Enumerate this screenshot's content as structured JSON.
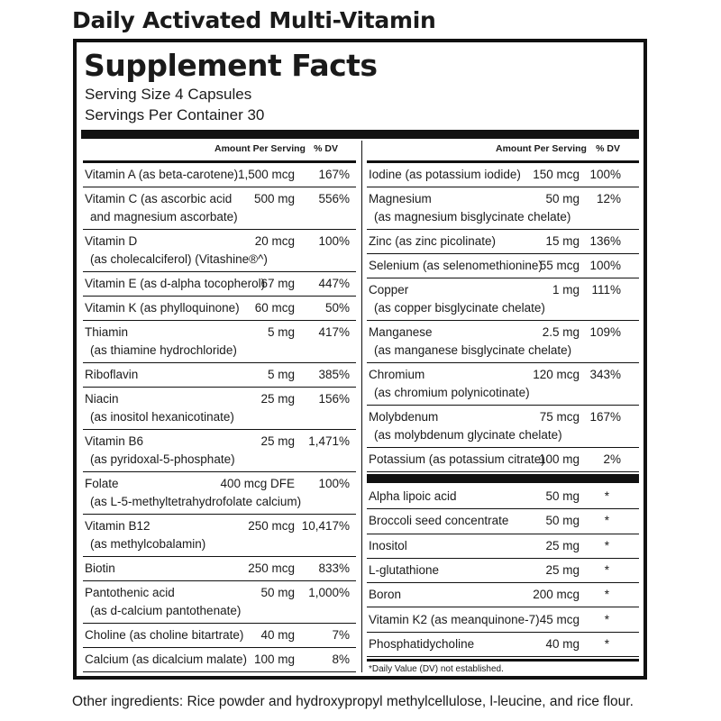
{
  "product_title": "Daily Activated Multi-Vitamin",
  "facts_title": "Supplement Facts",
  "serving_size": "Serving Size 4 Capsules",
  "servings_per_container": "Servings Per Container 30",
  "header": {
    "amount": "Amount Per Serving",
    "dv": "% DV"
  },
  "left_rows": [
    {
      "l1": "Vitamin A (as beta-carotene)",
      "l2": "",
      "amount": "1,500 mcg",
      "dv": "167%"
    },
    {
      "l1": "Vitamin C (as ascorbic acid",
      "l2": "and magnesium ascorbate)",
      "amount": "500 mg",
      "dv": "556%"
    },
    {
      "l1": "Vitamin D",
      "l2": "(as cholecalciferol) (Vitashine®^)",
      "amount": "20 mcg",
      "dv": "100%"
    },
    {
      "l1": "Vitamin E (as d-alpha tocopherol)",
      "l2": "",
      "amount": "67 mg",
      "dv": "447%"
    },
    {
      "l1": "Vitamin K (as phylloquinone)",
      "l2": "",
      "amount": "60 mcg",
      "dv": "50%"
    },
    {
      "l1": "Thiamin",
      "l2": "(as thiamine hydrochloride)",
      "amount": "5 mg",
      "dv": "417%"
    },
    {
      "l1": "Riboflavin",
      "l2": "",
      "amount": "5 mg",
      "dv": "385%"
    },
    {
      "l1": "Niacin",
      "l2": "(as inositol hexanicotinate)",
      "amount": "25 mg",
      "dv": "156%"
    },
    {
      "l1": "Vitamin B6",
      "l2": "(as pyridoxal-5-phosphate)",
      "amount": "25 mg",
      "dv": "1,471%"
    },
    {
      "l1": "Folate",
      "l2": "(as L-5-methyltetrahydrofolate calcium)",
      "amount": "400 mcg DFE",
      "dv": "100%"
    },
    {
      "l1": "Vitamin B12",
      "l2": "(as methylcobalamin)",
      "amount": "250 mcg",
      "dv": "10,417%"
    },
    {
      "l1": "Biotin",
      "l2": "",
      "amount": "250 mcg",
      "dv": "833%"
    },
    {
      "l1": "Pantothenic acid",
      "l2": "(as d-calcium pantothenate)",
      "amount": "50 mg",
      "dv": "1,000%"
    },
    {
      "l1": "Choline (as choline bitartrate)",
      "l2": "",
      "amount": "40 mg",
      "dv": "7%"
    },
    {
      "l1": "Calcium (as dicalcium malate)",
      "l2": "",
      "amount": "100 mg",
      "dv": "8%"
    }
  ],
  "right_rows": [
    {
      "l1": "Iodine (as potassium iodide)",
      "l2": "",
      "amount": "150 mcg",
      "dv": "100%"
    },
    {
      "l1": "Magnesium",
      "l2": "(as magnesium bisglycinate chelate)",
      "amount": "50 mg",
      "dv": "12%"
    },
    {
      "l1": "Zinc (as zinc picolinate)",
      "l2": "",
      "amount": "15 mg",
      "dv": "136%"
    },
    {
      "l1": "Selenium (as selenomethionine)",
      "l2": "",
      "amount": "55 mcg",
      "dv": "100%"
    },
    {
      "l1": "Copper",
      "l2": "(as copper bisglycinate chelate)",
      "amount": "1 mg",
      "dv": "111%"
    },
    {
      "l1": "Manganese",
      "l2": "(as manganese bisglycinate chelate)",
      "amount": "2.5 mg",
      "dv": "109%"
    },
    {
      "l1": "Chromium",
      "l2": "(as chromium polynicotinate)",
      "amount": "120 mcg",
      "dv": "343%"
    },
    {
      "l1": "Molybdenum",
      "l2": "(as molybdenum glycinate chelate)",
      "amount": "75 mcg",
      "dv": "167%"
    },
    {
      "l1": "Potassium (as potassium citrate)",
      "l2": "",
      "amount": "100 mg",
      "dv": "2%"
    }
  ],
  "right_rows2": [
    {
      "l1": "Alpha lipoic acid",
      "amount": "50 mg",
      "dv": "*"
    },
    {
      "l1": "Broccoli seed concentrate",
      "amount": "50 mg",
      "dv": "*"
    },
    {
      "l1": "Inositol",
      "amount": "25 mg",
      "dv": "*"
    },
    {
      "l1": "L-glutathione",
      "amount": "25 mg",
      "dv": "*"
    },
    {
      "l1": "Boron",
      "amount": "200 mcg",
      "dv": "*"
    },
    {
      "l1": "Vitamin K2 (as meanquinone-7)",
      "amount": "45 mcg",
      "dv": "*"
    },
    {
      "l1": "Phosphatidycholine",
      "amount": "40 mg",
      "dv": "*"
    }
  ],
  "footnote": "*Daily Value (DV) not established.",
  "other_ingredients": "Other ingredients: Rice powder and hydroxypropyl methylcellulose, l-leucine, and rice flour."
}
